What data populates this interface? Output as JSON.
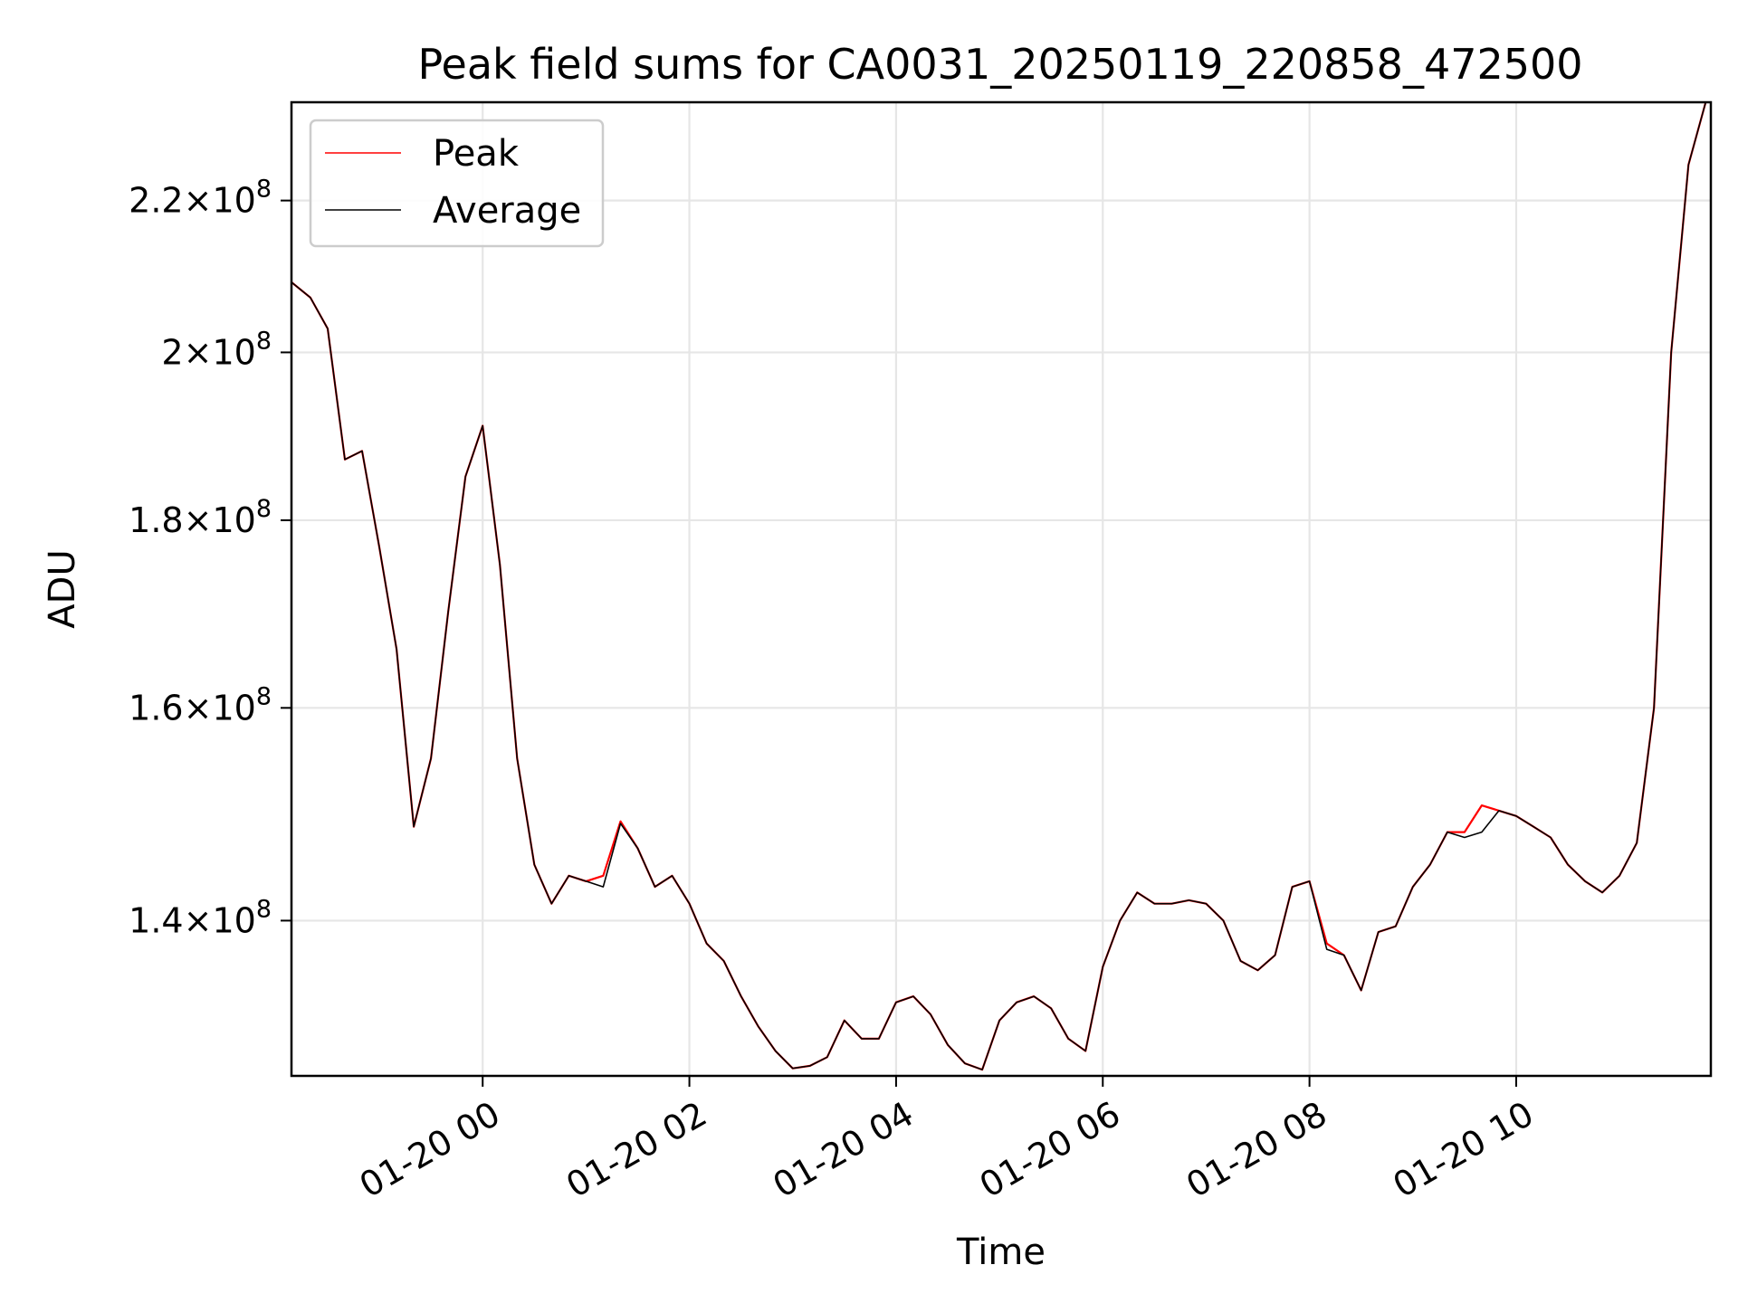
{
  "chart_data": {
    "type": "line",
    "title": "Peak field sums for CA0031_20250119_220858_472500",
    "xlabel": "Time",
    "ylabel": "ADU",
    "x_range": [
      "2025-01-19 22:09",
      "2025-01-20 11:53"
    ],
    "ylim": [
      127000000,
      234000000
    ],
    "y_scale": "log",
    "grid": true,
    "legend_position": "top-left",
    "x_ticks": [
      {
        "value": "2025-01-20 00:00",
        "label": "01-20 00"
      },
      {
        "value": "2025-01-20 02:00",
        "label": "01-20 02"
      },
      {
        "value": "2025-01-20 04:00",
        "label": "01-20 04"
      },
      {
        "value": "2025-01-20 06:00",
        "label": "01-20 06"
      },
      {
        "value": "2025-01-20 08:00",
        "label": "01-20 08"
      },
      {
        "value": "2025-01-20 10:00",
        "label": "01-20 10"
      }
    ],
    "y_ticks": [
      {
        "value": 140000000,
        "mantissa": "1.4",
        "base": "10",
        "exponent": "8"
      },
      {
        "value": 160000000,
        "mantissa": "1.6",
        "base": "10",
        "exponent": "8"
      },
      {
        "value": 180000000,
        "mantissa": "1.8",
        "base": "10",
        "exponent": "8"
      },
      {
        "value": 200000000,
        "mantissa": "2",
        "base": "10",
        "exponent": "8"
      },
      {
        "value": 220000000,
        "mantissa": "2.2",
        "base": "10",
        "exponent": "8"
      }
    ],
    "x": [
      "2025-01-19 22:09",
      "2025-01-19 22:20",
      "2025-01-19 22:30",
      "2025-01-19 22:40",
      "2025-01-19 22:50",
      "2025-01-19 23:00",
      "2025-01-19 23:10",
      "2025-01-19 23:20",
      "2025-01-19 23:30",
      "2025-01-19 23:40",
      "2025-01-19 23:50",
      "2025-01-20 00:00",
      "2025-01-20 00:10",
      "2025-01-20 00:20",
      "2025-01-20 00:30",
      "2025-01-20 00:40",
      "2025-01-20 00:50",
      "2025-01-20 01:00",
      "2025-01-20 01:10",
      "2025-01-20 01:20",
      "2025-01-20 01:30",
      "2025-01-20 01:40",
      "2025-01-20 01:50",
      "2025-01-20 02:00",
      "2025-01-20 02:10",
      "2025-01-20 02:20",
      "2025-01-20 02:30",
      "2025-01-20 02:40",
      "2025-01-20 02:50",
      "2025-01-20 03:00",
      "2025-01-20 03:10",
      "2025-01-20 03:20",
      "2025-01-20 03:30",
      "2025-01-20 03:40",
      "2025-01-20 03:50",
      "2025-01-20 04:00",
      "2025-01-20 04:10",
      "2025-01-20 04:20",
      "2025-01-20 04:30",
      "2025-01-20 04:40",
      "2025-01-20 04:50",
      "2025-01-20 05:00",
      "2025-01-20 05:10",
      "2025-01-20 05:20",
      "2025-01-20 05:30",
      "2025-01-20 05:40",
      "2025-01-20 05:50",
      "2025-01-20 06:00",
      "2025-01-20 06:10",
      "2025-01-20 06:20",
      "2025-01-20 06:30",
      "2025-01-20 06:40",
      "2025-01-20 06:50",
      "2025-01-20 07:00",
      "2025-01-20 07:10",
      "2025-01-20 07:20",
      "2025-01-20 07:30",
      "2025-01-20 07:40",
      "2025-01-20 07:50",
      "2025-01-20 08:00",
      "2025-01-20 08:10",
      "2025-01-20 08:20",
      "2025-01-20 08:30",
      "2025-01-20 08:40",
      "2025-01-20 08:50",
      "2025-01-20 09:00",
      "2025-01-20 09:10",
      "2025-01-20 09:20",
      "2025-01-20 09:30",
      "2025-01-20 09:40",
      "2025-01-20 09:50",
      "2025-01-20 10:00",
      "2025-01-20 10:10",
      "2025-01-20 10:20",
      "2025-01-20 10:30",
      "2025-01-20 10:40",
      "2025-01-20 10:50",
      "2025-01-20 11:00",
      "2025-01-20 11:10",
      "2025-01-20 11:20",
      "2025-01-20 11:30",
      "2025-01-20 11:40",
      "2025-01-20 11:50"
    ],
    "series": [
      {
        "name": "Peak",
        "color": "#ff0000",
        "values": [
          209000000,
          207000000,
          203000000,
          187000000,
          188000000,
          177000000,
          166000000,
          148500000,
          155000000,
          170000000,
          185000000,
          191000000,
          175000000,
          155000000,
          145000000,
          141500000,
          144000000,
          143500000,
          144000000,
          149000000,
          146500000,
          143000000,
          144000000,
          141500000,
          138000000,
          136500000,
          133500000,
          131000000,
          129000000,
          127600000,
          127800000,
          128500000,
          131500000,
          130000000,
          130000000,
          133000000,
          133500000,
          132000000,
          129500000,
          128000000,
          127500000,
          131500000,
          133000000,
          133500000,
          132500000,
          130000000,
          129000000,
          136000000,
          140000000,
          142500000,
          141500000,
          141500000,
          141800000,
          141500000,
          140000000,
          136500000,
          135700000,
          137000000,
          143000000,
          143500000,
          138000000,
          137000000,
          134000000,
          139000000,
          139500000,
          143000000,
          145000000,
          148000000,
          148000000,
          150500000,
          150000000,
          149500000,
          148500000,
          147500000,
          145000000,
          143500000,
          142500000,
          144000000,
          147000000,
          160000000,
          200000000,
          225000000,
          234000000
        ]
      },
      {
        "name": "Average",
        "color": "#000000",
        "values": [
          209000000,
          207000000,
          203000000,
          187000000,
          188000000,
          177000000,
          166000000,
          148500000,
          155000000,
          170000000,
          185000000,
          191000000,
          175000000,
          155000000,
          145000000,
          141500000,
          144000000,
          143500000,
          143000000,
          148800000,
          146500000,
          143000000,
          144000000,
          141500000,
          138000000,
          136500000,
          133500000,
          131000000,
          129000000,
          127600000,
          127800000,
          128500000,
          131500000,
          130000000,
          130000000,
          133000000,
          133500000,
          132000000,
          129500000,
          128000000,
          127500000,
          131500000,
          133000000,
          133500000,
          132500000,
          130000000,
          129000000,
          136000000,
          140000000,
          142500000,
          141500000,
          141500000,
          141800000,
          141500000,
          140000000,
          136500000,
          135700000,
          137000000,
          143000000,
          143500000,
          137500000,
          137000000,
          134000000,
          139000000,
          139500000,
          143000000,
          145000000,
          148000000,
          147500000,
          148000000,
          150000000,
          149500000,
          148500000,
          147500000,
          145000000,
          143500000,
          142500000,
          144000000,
          147000000,
          160000000,
          200000000,
          225000000,
          234000000
        ]
      }
    ]
  }
}
